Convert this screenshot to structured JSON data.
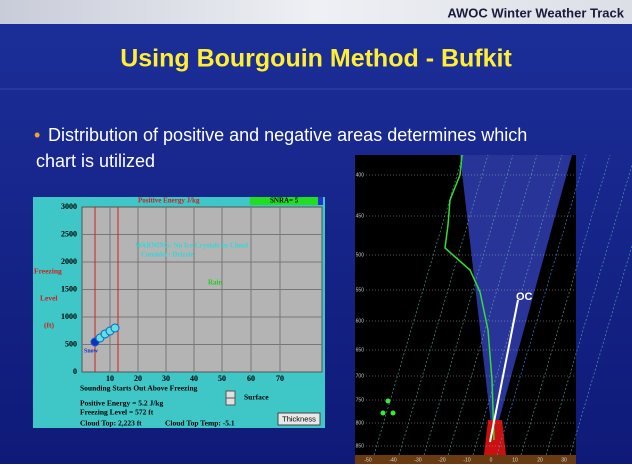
{
  "header": {
    "track": "AWOC Winter Weather Track"
  },
  "title": "Using Bourgouin Method - Bufkit",
  "bullet": {
    "lines": [
      "Distribution of positive and negative areas determines which",
      "chart is utilized"
    ]
  },
  "left_chart": {
    "heading": "Positive Energy J/kg",
    "badge": "SNRA= 5",
    "y_ticks": [
      "3000",
      "2500",
      "2000",
      "1500",
      "1000",
      "500",
      "0"
    ],
    "x_ticks": [
      "10",
      "20",
      "30",
      "40",
      "50",
      "60",
      "70"
    ],
    "y_label": [
      "Freezing",
      "Level",
      "(ft)"
    ],
    "warning": "WARNING: No Ice Crystals In Cloud",
    "consider": "Consider: Drizzle",
    "zone": "Rain",
    "snow": "Snow",
    "notes": [
      "Sounding Starts Out Above Freezing",
      "Positive Energy = 5.2 J/kg",
      "Freezing Level = 572 ft"
    ],
    "cloud_top": "Cloud Top: 2,223 ft",
    "cloud_top_temp": "Cloud Top Temp: -5.1",
    "surface": "Surface",
    "button": "Thickness"
  },
  "right_chart": {
    "pressure_labels": [
      "400",
      "450",
      "500",
      "550",
      "600",
      "650",
      "700",
      "750",
      "800",
      "850"
    ],
    "temp_labels": [
      "-50",
      "-40",
      "-30",
      "-20",
      "-10",
      "0",
      "10",
      "20",
      "30"
    ],
    "marker": "OC"
  }
}
